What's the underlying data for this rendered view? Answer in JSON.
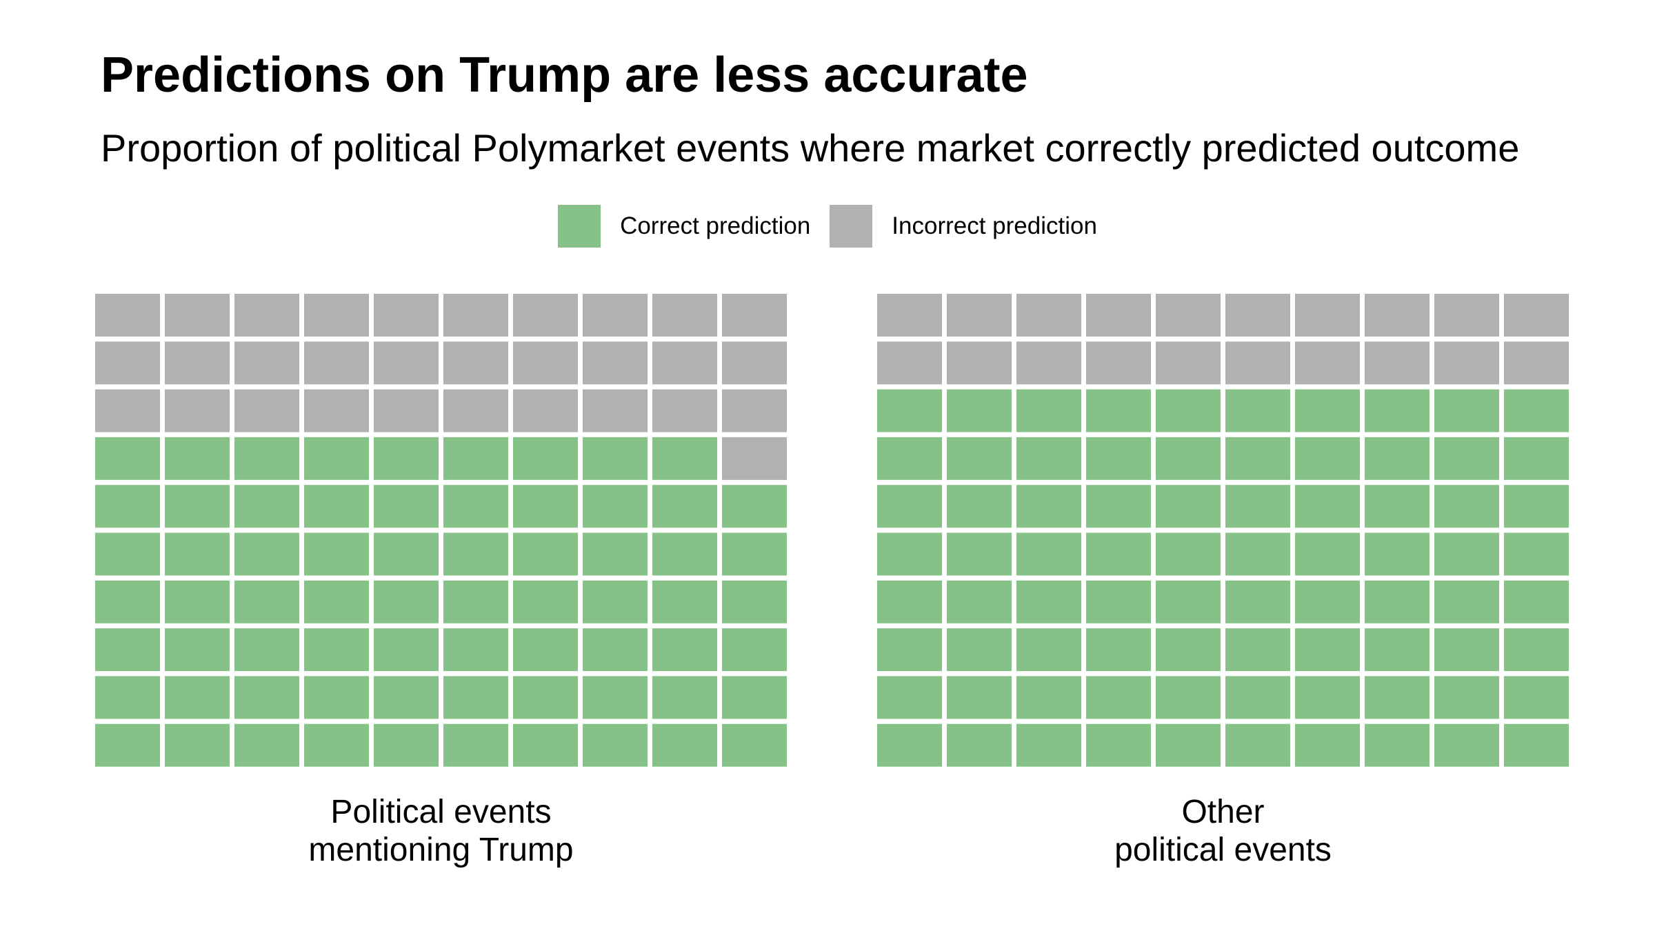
{
  "title": "Predictions on Trump are less accurate",
  "subtitle": "Proportion of political Polymarket events where market correctly predicted outcome",
  "legend": {
    "items": [
      {
        "label": "Correct prediction",
        "color": "#86c287"
      },
      {
        "label": "Incorrect prediction",
        "color": "#b1b1b1"
      }
    ]
  },
  "chart_data": [
    {
      "type": "waffle",
      "panel_label": "Political events\nmentioning Trump",
      "grid": {
        "rows": 10,
        "cols": 10
      },
      "fill_order": "bottom-up, left-to-right",
      "series": [
        {
          "name": "Correct prediction",
          "value": 69,
          "color": "#86c287"
        },
        {
          "name": "Incorrect prediction",
          "value": 31,
          "color": "#b1b1b1"
        }
      ]
    },
    {
      "type": "waffle",
      "panel_label": "Other\npolitical events",
      "grid": {
        "rows": 10,
        "cols": 10
      },
      "fill_order": "bottom-up, left-to-right",
      "series": [
        {
          "name": "Correct prediction",
          "value": 80,
          "color": "#86c287"
        },
        {
          "name": "Incorrect prediction",
          "value": 20,
          "color": "#b1b1b1"
        }
      ]
    }
  ]
}
